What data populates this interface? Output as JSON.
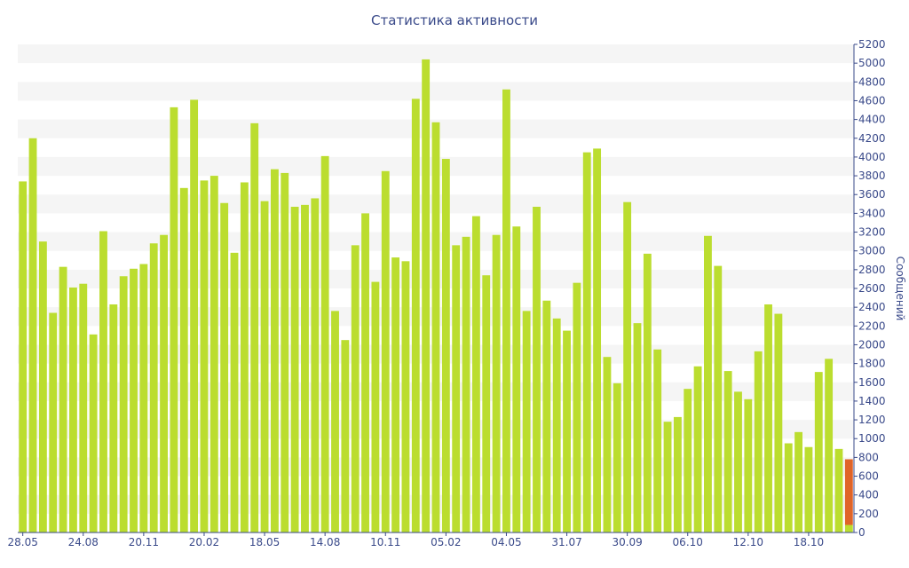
{
  "chart_data": {
    "type": "bar",
    "title": "Статистика активности",
    "ylabel": "Сообщений",
    "ylim": [
      0,
      5200
    ],
    "y_ticks": [
      0,
      200,
      400,
      600,
      800,
      1000,
      1200,
      1400,
      1600,
      1800,
      2000,
      2200,
      2400,
      2600,
      2800,
      3000,
      3200,
      3400,
      3600,
      3800,
      4000,
      4200,
      4400,
      4600,
      4800,
      5000,
      5200
    ],
    "x_tick_labels": [
      {
        "index": 0,
        "label": "28.05"
      },
      {
        "index": 6,
        "label": "24.08"
      },
      {
        "index": 12,
        "label": "20.11"
      },
      {
        "index": 18,
        "label": "20.02"
      },
      {
        "index": 24,
        "label": "18.05"
      },
      {
        "index": 30,
        "label": "14.08"
      },
      {
        "index": 36,
        "label": "10.11"
      },
      {
        "index": 42,
        "label": "05.02"
      },
      {
        "index": 48,
        "label": "04.05"
      },
      {
        "index": 54,
        "label": "31.07"
      },
      {
        "index": 60,
        "label": "30.09"
      },
      {
        "index": 66,
        "label": "06.10"
      },
      {
        "index": 72,
        "label": "12.10"
      },
      {
        "index": 78,
        "label": "18.10"
      }
    ],
    "values": [
      3740,
      4200,
      3100,
      2340,
      2830,
      2610,
      2650,
      2110,
      3210,
      2430,
      2730,
      2810,
      2860,
      3080,
      3170,
      4530,
      3670,
      4610,
      3750,
      3800,
      3510,
      2980,
      3730,
      4360,
      3530,
      3870,
      3830,
      3470,
      3490,
      3560,
      4010,
      2360,
      2050,
      3060,
      3400,
      2670,
      3850,
      2930,
      2890,
      4620,
      5040,
      4370,
      3980,
      3060,
      3150,
      3370,
      2740,
      3170,
      4720,
      3260,
      2360,
      3470,
      2470,
      2280,
      2150,
      2660,
      4050,
      4090,
      1870,
      1590,
      3520,
      2230,
      2970,
      1950,
      1180,
      1230,
      1530,
      1770,
      3160,
      2840,
      1720,
      1500,
      1420,
      1930,
      2430,
      2330,
      950,
      1070,
      910,
      1710,
      1850,
      890
    ],
    "last_bar": {
      "total": 780,
      "lower": 80
    },
    "colors": {
      "bar": "#bbdd2f",
      "highlight": "#e06428",
      "text": "#3a4a8a",
      "band": "#f5f5f5",
      "axis": "#3a4a8a"
    },
    "grid": "alternating horizontal bands",
    "y_axis_side": "right"
  }
}
